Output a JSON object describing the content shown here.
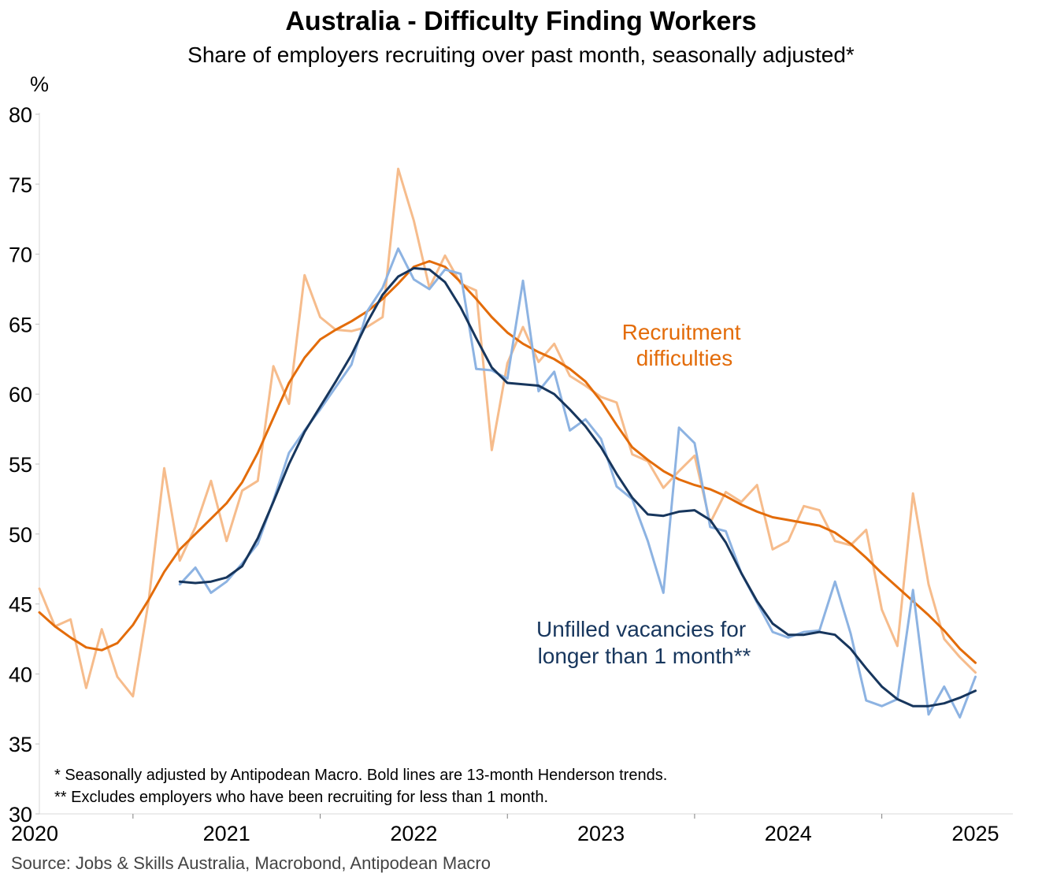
{
  "chart_data": {
    "type": "line",
    "title": "Australia - Difficulty Finding Workers",
    "subtitle": "Share of employers recruiting over past month, seasonally adjusted*",
    "ylabel": "%",
    "ylim": [
      30,
      80
    ],
    "yticks": [
      30,
      35,
      40,
      45,
      50,
      55,
      60,
      65,
      70,
      75,
      80
    ],
    "xlim": [
      2020.0,
      2025.2
    ],
    "xticks": [
      2020,
      2021,
      2022,
      2023,
      2024,
      2025
    ],
    "xtick_labels": [
      "2020",
      "2021",
      "2022",
      "2023",
      "2024",
      "2025"
    ],
    "series": [
      {
        "name": "Recruitment difficulties (SA)",
        "color": "#F6BC8C",
        "x_start": 2020.0,
        "values": [
          46.1,
          43.4,
          43.9,
          39.0,
          43.2,
          39.8,
          38.4,
          45.2,
          54.7,
          48.1,
          50.5,
          53.8,
          49.5,
          53.1,
          53.8,
          62.0,
          59.3,
          68.5,
          65.5,
          64.6,
          64.5,
          64.8,
          65.5,
          76.1,
          72.4,
          67.6,
          69.9,
          67.9,
          67.4,
          56.0,
          62.2,
          64.8,
          62.3,
          63.6,
          61.3,
          60.6,
          59.8,
          59.4,
          55.7,
          55.2,
          53.3,
          54.5,
          55.6,
          50.8,
          53.0,
          52.3,
          53.5,
          48.9,
          49.5,
          52.0,
          51.7,
          49.5,
          49.2,
          50.3,
          44.6,
          42.0,
          52.9,
          46.4,
          42.5,
          41.2,
          40.1
        ]
      },
      {
        "name": "Recruitment difficulties trend",
        "color": "#E36C0A",
        "x_start": 2020.0,
        "values": [
          44.4,
          43.4,
          42.6,
          41.9,
          41.7,
          42.2,
          43.5,
          45.3,
          47.3,
          48.9,
          50.0,
          51.1,
          52.2,
          53.7,
          55.8,
          58.3,
          60.8,
          62.6,
          63.9,
          64.6,
          65.2,
          65.9,
          66.8,
          67.9,
          69.1,
          69.5,
          69.1,
          68.0,
          66.8,
          65.5,
          64.4,
          63.6,
          63.0,
          62.5,
          61.8,
          60.9,
          59.5,
          57.8,
          56.2,
          55.3,
          54.5,
          53.9,
          53.5,
          53.2,
          52.7,
          52.1,
          51.6,
          51.2,
          51.0,
          50.8,
          50.6,
          50.1,
          49.3,
          48.3,
          47.2,
          46.2,
          45.2,
          44.2,
          43.1,
          41.8,
          40.8
        ]
      },
      {
        "name": "Unfilled vacancies for longer than 1 month (SA)",
        "color": "#8DB3E2",
        "x_start": 2020.75,
        "values": [
          46.4,
          47.6,
          45.8,
          46.6,
          47.9,
          49.3,
          52.4,
          55.8,
          57.4,
          58.9,
          60.5,
          62.1,
          65.9,
          67.6,
          70.4,
          68.2,
          67.5,
          68.9,
          68.6,
          61.8,
          61.7,
          61.1,
          68.1,
          60.2,
          61.6,
          57.4,
          58.2,
          56.8,
          53.4,
          52.5,
          49.5,
          45.8,
          57.6,
          56.5,
          50.5,
          50.2,
          47.2,
          45.1,
          43.0,
          42.6,
          43.0,
          43.1,
          46.6,
          42.9,
          38.1,
          37.7,
          38.2,
          46.0,
          37.1,
          39.1,
          36.9,
          39.8
        ]
      },
      {
        "name": "Unfilled vacancies trend",
        "color": "#17365D",
        "x_start": 2020.75,
        "values": [
          46.6,
          46.5,
          46.6,
          46.9,
          47.7,
          49.7,
          52.3,
          55.0,
          57.3,
          59.1,
          60.9,
          62.8,
          65.1,
          67.1,
          68.4,
          69.0,
          68.9,
          68.0,
          66.2,
          64.0,
          61.9,
          60.8,
          60.7,
          60.6,
          60.0,
          58.9,
          57.7,
          56.2,
          54.3,
          52.6,
          51.4,
          51.3,
          51.6,
          51.7,
          51.0,
          49.4,
          47.2,
          45.2,
          43.6,
          42.8,
          42.8,
          43.0,
          42.8,
          41.8,
          40.4,
          39.1,
          38.2,
          37.7,
          37.7,
          37.9,
          38.3,
          38.8
        ]
      }
    ],
    "annotations": [
      {
        "lines": [
          "Recruitment",
          "difficulties"
        ],
        "color": "#E36C0A"
      },
      {
        "lines": [
          "Unfilled vacancies for",
          "longer than 1 month**"
        ],
        "color": "#17365D"
      }
    ],
    "notes": [
      "* Seasonally adjusted by Antipodean Macro. Bold lines are 13-month Henderson trends.",
      "** Excludes employers who have been recruiting for less than 1 month."
    ],
    "source": "Source: Jobs & Skills Australia, Macrobond, Antipodean Macro"
  }
}
